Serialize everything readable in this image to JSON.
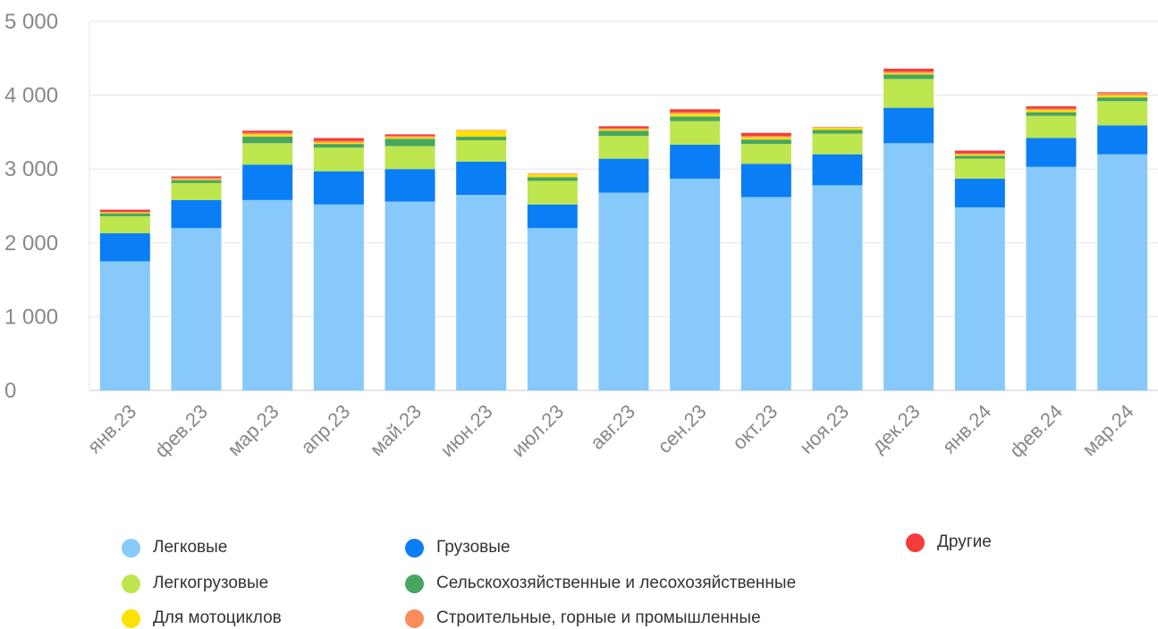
{
  "chart_data": {
    "type": "bar",
    "stacked": true,
    "categories": [
      "янв.23",
      "фев.23",
      "мар.23",
      "апр.23",
      "май.23",
      "июн.23",
      "июл.23",
      "авг.23",
      "сен.23",
      "окт.23",
      "ноя.23",
      "дек.23",
      "янв.24",
      "фев.24",
      "мар.24"
    ],
    "y_ticks": [
      "0",
      "1 000",
      "2 000",
      "3 000",
      "4 000",
      "5 000"
    ],
    "ylim": [
      0,
      5000
    ],
    "grid": true,
    "legend_position": "bottom",
    "series": [
      {
        "name": "Легковые",
        "color": "#87c9fa",
        "values": [
          1750,
          2200,
          2580,
          2520,
          2560,
          2650,
          2200,
          2680,
          2870,
          2620,
          2780,
          3350,
          2480,
          3030,
          3200
        ]
      },
      {
        "name": "Грузовые",
        "color": "#0a7ef5",
        "values": [
          380,
          380,
          480,
          450,
          440,
          450,
          320,
          460,
          460,
          450,
          420,
          480,
          390,
          390,
          390
        ]
      },
      {
        "name": "Легкогрузовые",
        "color": "#bde64f",
        "values": [
          230,
          230,
          290,
          320,
          310,
          290,
          320,
          310,
          320,
          270,
          280,
          390,
          270,
          300,
          330
        ]
      },
      {
        "name": "Сельскохозяйственные и лесохозяйственные",
        "color": "#48a661",
        "values": [
          40,
          40,
          90,
          50,
          100,
          50,
          50,
          70,
          60,
          60,
          50,
          60,
          40,
          50,
          50
        ]
      },
      {
        "name": "Для мотоциклов",
        "color": "#ffe100",
        "values": [
          10,
          10,
          30,
          20,
          20,
          80,
          40,
          20,
          40,
          30,
          30,
          20,
          20,
          30,
          30
        ]
      },
      {
        "name": "Строительные, горные и промышленные",
        "color": "#fc8c59",
        "values": [
          10,
          20,
          20,
          20,
          20,
          10,
          10,
          10,
          20,
          20,
          10,
          20,
          10,
          20,
          30
        ]
      },
      {
        "name": "Другие",
        "color": "#f53b3b",
        "values": [
          30,
          20,
          30,
          40,
          20,
          0,
          0,
          30,
          40,
          40,
          0,
          40,
          40,
          30,
          10
        ]
      }
    ]
  },
  "legend": [
    {
      "label": "Легковые",
      "color": "#87c9fa"
    },
    {
      "label": "Грузовые",
      "color": "#0a7ef5"
    },
    {
      "label": "Другие",
      "color": "#f53b3b"
    },
    {
      "label": "Легкогрузовые",
      "color": "#bde64f"
    },
    {
      "label": "Сельскохозяйственные и лесохозяйственные",
      "color": "#48a661"
    },
    {
      "label": "Для мотоциклов",
      "color": "#ffe100"
    },
    {
      "label": "Строительные, горные и промышленные",
      "color": "#fc8c59"
    }
  ]
}
